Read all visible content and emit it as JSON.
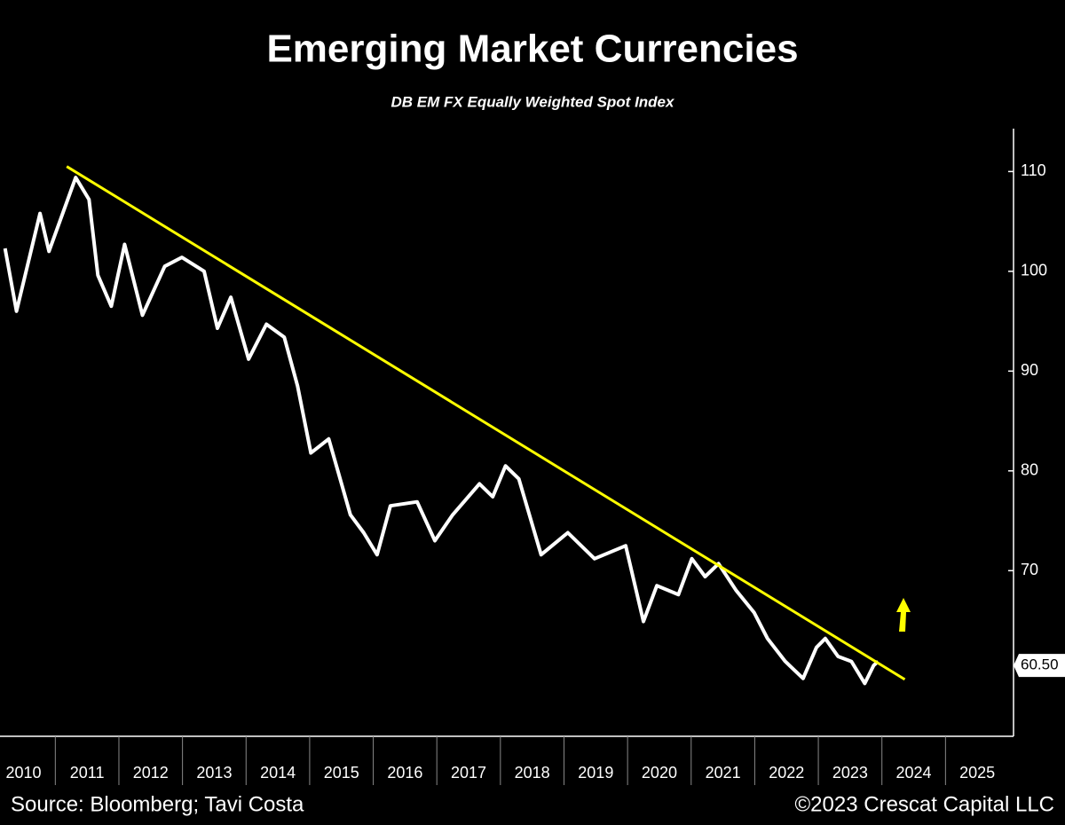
{
  "chart_data": {
    "type": "line",
    "title": "Emerging Market Currencies",
    "subtitle": "DB EM FX Equally Weighted Spot Index",
    "source": "Source: Bloomberg; Tavi Costa",
    "copyright": "©2023 Crescat Capital LLC",
    "xlim": [
      2010.13,
      2026
    ],
    "xticks": [
      2010,
      2011,
      2012,
      2013,
      2014,
      2015,
      2016,
      2017,
      2018,
      2019,
      2020,
      2021,
      2022,
      2023,
      2024,
      2025
    ],
    "ylim": [
      53.4,
      114.3
    ],
    "yticks": [
      70,
      80,
      90,
      100,
      110
    ],
    "series": [
      {
        "color": "#ffffff",
        "x": [
          2010.21,
          2010.39,
          2010.76,
          2010.9,
          2011.32,
          2011.53,
          2011.67,
          2011.88,
          2012.09,
          2012.37,
          2012.72,
          2012.99,
          2013.34,
          2013.55,
          2013.76,
          2014.04,
          2014.32,
          2014.6,
          2014.81,
          2015.02,
          2015.3,
          2015.64,
          2015.85,
          2016.06,
          2016.27,
          2016.69,
          2016.97,
          2017.25,
          2017.67,
          2017.88,
          2018.08,
          2018.29,
          2018.64,
          2019.06,
          2019.48,
          2019.97,
          2020.25,
          2020.46,
          2020.8,
          2021.01,
          2021.22,
          2021.43,
          2021.71,
          2021.99,
          2022.2,
          2022.48,
          2022.76,
          2022.97,
          2023.11,
          2023.31,
          2023.52,
          2023.73,
          2023.87,
          2023.94
        ],
        "values": [
          102.3,
          96,
          105.8,
          102,
          109.4,
          107.2,
          99.6,
          96.5,
          102.7,
          95.6,
          100.5,
          101.4,
          100,
          94.3,
          97.4,
          91.2,
          94.7,
          93.4,
          88.5,
          81.8,
          83.2,
          75.6,
          73.8,
          71.6,
          76.5,
          76.9,
          73,
          75.6,
          78.7,
          77.4,
          80.5,
          79.2,
          71.6,
          73.8,
          71.2,
          72.5,
          64.9,
          68.5,
          67.6,
          71.2,
          69.4,
          70.7,
          68,
          65.8,
          63.2,
          60.9,
          59.2,
          62.3,
          63.2,
          61.4,
          60.9,
          58.7,
          60.5,
          60.9
        ]
      },
      {
        "color": "#ffff00",
        "x": [
          2011.18,
          2024.36
        ],
        "values": [
          110.5,
          59.1
        ]
      }
    ],
    "value_label": {
      "value": 60.5,
      "label": "60.50"
    }
  }
}
